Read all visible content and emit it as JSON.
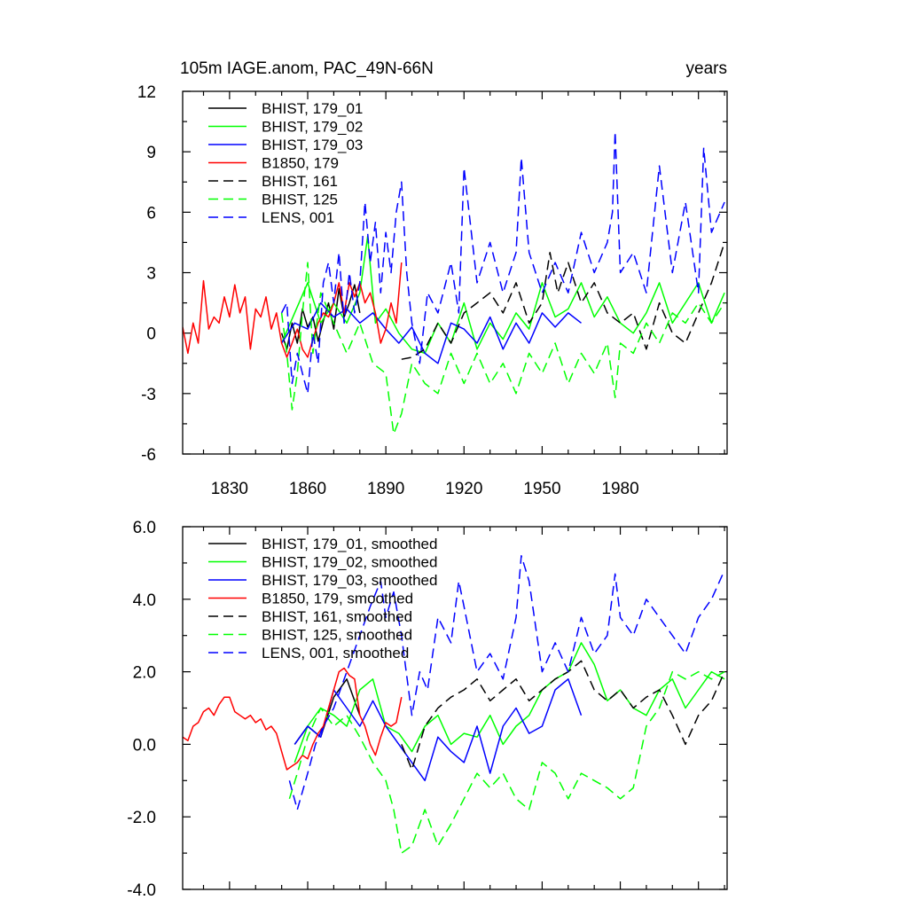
{
  "chart_data": [
    {
      "type": "line",
      "title_left": "105m IAGE.anom, PAC_49N-66N",
      "title_right": "years",
      "xlim": [
        1812,
        2021
      ],
      "ylim": [
        -6,
        12
      ],
      "x_ticks": [
        1830,
        1860,
        1890,
        1920,
        1950,
        1980
      ],
      "x_tick_labels": [
        "1830",
        "1860",
        "1890",
        "1920",
        "1950",
        "1980"
      ],
      "y_ticks": [
        12,
        9,
        6,
        3,
        0,
        -3,
        -6
      ],
      "y_tick_labels": [
        "12",
        "9",
        "6",
        "3",
        "0",
        "-3",
        "-6"
      ],
      "legend_position": "top-left",
      "series": [
        {
          "name": "BHIST, 179_01",
          "color": "#000000",
          "dash": "solid",
          "x": [
            1850,
            1852,
            1854,
            1856,
            1858,
            1860,
            1862,
            1864,
            1866,
            1868,
            1870,
            1872,
            1874,
            1876,
            1878,
            1880
          ],
          "y": [
            0,
            -0.8,
            0.5,
            -0.5,
            1.2,
            0.3,
            0.8,
            -0.4,
            0.6,
            1.5,
            0.2,
            2.2,
            0.8,
            1.5,
            2.4,
            1.0
          ]
        },
        {
          "name": "BHIST, 179_02",
          "color": "#00ff00",
          "dash": "solid",
          "x": [
            1850,
            1855,
            1860,
            1865,
            1870,
            1875,
            1880,
            1883,
            1886,
            1890,
            1895,
            1900,
            1905,
            1910,
            1915,
            1920,
            1925,
            1930,
            1935,
            1940,
            1945,
            1950,
            1955,
            1960,
            1965,
            1970,
            1975,
            1980,
            1985,
            1990,
            1995,
            2000,
            2005,
            2010,
            2015,
            2020
          ],
          "y": [
            -0.5,
            1.0,
            2.5,
            0.5,
            1.5,
            0.5,
            2.0,
            4.8,
            0.5,
            1.2,
            0.0,
            -0.8,
            -1.0,
            0.5,
            -0.5,
            1.5,
            -0.8,
            0.5,
            -0.3,
            1.0,
            0.2,
            2.5,
            0.8,
            1.2,
            2.5,
            0.8,
            1.8,
            0.5,
            0.0,
            1.0,
            2.5,
            0.5,
            1.5,
            2.5,
            0.5,
            2.0
          ]
        },
        {
          "name": "BHIST, 179_03",
          "color": "#0000ff",
          "dash": "solid",
          "x": [
            1850,
            1855,
            1860,
            1865,
            1870,
            1875,
            1880,
            1885,
            1890,
            1895,
            1900,
            1905,
            1910,
            1915,
            1920,
            1925,
            1930,
            1935,
            1940,
            1945,
            1950,
            1955,
            1960,
            1965
          ],
          "y": [
            -0.5,
            0.5,
            0.2,
            1.5,
            0.8,
            1.2,
            0.5,
            1.0,
            0.2,
            -0.5,
            0.3,
            -1.0,
            -1.5,
            0.5,
            0.2,
            -0.5,
            0.8,
            -0.8,
            0.5,
            -0.5,
            1.0,
            0.3,
            1.0,
            0.5
          ]
        },
        {
          "name": "B1850, 179",
          "color": "#ff0000",
          "dash": "solid",
          "x": [
            1812,
            1814,
            1816,
            1818,
            1820,
            1822,
            1824,
            1826,
            1828,
            1830,
            1832,
            1834,
            1836,
            1838,
            1840,
            1842,
            1844,
            1846,
            1848,
            1850,
            1852,
            1854,
            1856,
            1858,
            1860,
            1862,
            1864,
            1866,
            1868,
            1870,
            1872,
            1874,
            1876,
            1878,
            1880,
            1882,
            1884,
            1886,
            1888,
            1890,
            1892,
            1894,
            1896
          ],
          "y": [
            0.3,
            -1.0,
            0.5,
            -0.5,
            2.6,
            0.2,
            0.8,
            0.5,
            1.8,
            0.8,
            2.4,
            1.0,
            1.8,
            -0.8,
            1.2,
            0.8,
            1.8,
            0.2,
            1.0,
            -0.5,
            -1.2,
            -0.5,
            0.2,
            -0.8,
            -1.2,
            -0.3,
            0.5,
            1.0,
            0.8,
            1.5,
            2.5,
            1.0,
            2.5,
            1.8,
            2.5,
            1.5,
            2.0,
            1.0,
            -0.5,
            0.2,
            1.5,
            0.5,
            3.5
          ]
        },
        {
          "name": "BHIST, 161",
          "color": "#000000",
          "dash": "dashed",
          "x": [
            1896,
            1900,
            1905,
            1910,
            1915,
            1920,
            1925,
            1930,
            1935,
            1940,
            1945,
            1950,
            1953,
            1956,
            1960,
            1965,
            1970,
            1975,
            1980,
            1985,
            1990,
            1995,
            2000,
            2005,
            2010,
            2015,
            2020
          ],
          "y": [
            -1.3,
            -1.2,
            -0.8,
            0.5,
            -0.5,
            1.0,
            1.5,
            2.0,
            1.0,
            2.5,
            0.5,
            1.5,
            4.0,
            2.0,
            3.5,
            1.5,
            2.5,
            1.0,
            0.5,
            1.0,
            -0.8,
            1.5,
            0.0,
            -0.5,
            1.0,
            2.5,
            4.5
          ]
        },
        {
          "name": "BHIST, 125",
          "color": "#00ff00",
          "dash": "dashed",
          "x": [
            1850,
            1852,
            1854,
            1856,
            1858,
            1860,
            1862,
            1865,
            1870,
            1875,
            1880,
            1885,
            1890,
            1893,
            1896,
            1900,
            1905,
            1910,
            1915,
            1920,
            1925,
            1930,
            1935,
            1940,
            1945,
            1950,
            1955,
            1960,
            1965,
            1970,
            1975,
            1978,
            1980,
            1985,
            1990,
            1995,
            2000,
            2005,
            2010,
            2015,
            2020
          ],
          "y": [
            1.0,
            -1.0,
            -3.8,
            -2.0,
            1.0,
            3.5,
            -1.0,
            2.0,
            0.5,
            -1.0,
            0.5,
            -1.5,
            -2.0,
            -5.0,
            -4.0,
            -1.5,
            -2.5,
            -3.0,
            -1.0,
            -2.5,
            -1.0,
            -2.5,
            -1.5,
            -3.0,
            -1.0,
            -2.0,
            -0.5,
            -2.5,
            -1.0,
            -2.0,
            -0.5,
            -3.2,
            -0.5,
            -1.0,
            0.5,
            -0.5,
            1.0,
            0.5,
            1.5,
            0.5,
            1.5
          ]
        },
        {
          "name": "LENS, 001",
          "color": "#0000ff",
          "dash": "dashed",
          "x": [
            1850,
            1852,
            1854,
            1856,
            1858,
            1860,
            1862,
            1864,
            1866,
            1868,
            1870,
            1872,
            1874,
            1876,
            1878,
            1880,
            1882,
            1884,
            1886,
            1888,
            1890,
            1892,
            1894,
            1896,
            1898,
            1900,
            1903,
            1906,
            1910,
            1915,
            1918,
            1920,
            1925,
            1930,
            1935,
            1940,
            1942,
            1945,
            1950,
            1955,
            1960,
            1965,
            1970,
            1975,
            1977,
            1978,
            1980,
            1985,
            1990,
            1995,
            2000,
            2005,
            2010,
            2012,
            2015,
            2020
          ],
          "y": [
            1.0,
            1.5,
            -2.5,
            -1.0,
            -2.0,
            -3.0,
            0.0,
            -1.5,
            2.5,
            3.5,
            1.5,
            4.0,
            0.5,
            3.0,
            1.0,
            2.5,
            6.5,
            3.5,
            5.5,
            2.0,
            5.0,
            3.0,
            6.0,
            7.5,
            3.0,
            0.5,
            -1.5,
            2.0,
            1.0,
            3.5,
            1.0,
            8.2,
            2.5,
            4.5,
            2.0,
            4.0,
            8.7,
            4.0,
            2.0,
            3.5,
            2.0,
            5.0,
            3.0,
            4.5,
            6.0,
            10.0,
            3.0,
            4.0,
            2.0,
            8.3,
            3.0,
            6.5,
            2.0,
            9.2,
            5.0,
            6.5
          ]
        }
      ]
    },
    {
      "type": "line",
      "xlim": [
        1812,
        2021
      ],
      "ylim": [
        -4,
        6
      ],
      "x_ticks": [
        1830,
        1860,
        1890,
        1920,
        1950,
        1980
      ],
      "y_ticks": [
        6,
        4,
        2,
        0,
        -2,
        -4
      ],
      "y_tick_labels": [
        "6.0",
        "4.0",
        "2.0",
        "0.0",
        "-2.0",
        "-4.0"
      ],
      "legend_position": "top-left",
      "series": [
        {
          "name": "BHIST, 179_01, smoothed",
          "color": "#000000",
          "dash": "solid",
          "x": [
            1855,
            1860,
            1865,
            1870,
            1875,
            1880
          ],
          "y": [
            0.0,
            0.5,
            0.2,
            1.3,
            1.8,
            0.8
          ]
        },
        {
          "name": "BHIST, 179_02, smoothed",
          "color": "#00ff00",
          "dash": "solid",
          "x": [
            1855,
            1860,
            1865,
            1870,
            1875,
            1880,
            1885,
            1890,
            1895,
            1900,
            1905,
            1910,
            1915,
            1920,
            1925,
            1930,
            1935,
            1940,
            1945,
            1950,
            1955,
            1960,
            1965,
            1970,
            1975,
            1980,
            1985,
            1990,
            1995,
            2000,
            2005,
            2010,
            2015,
            2020
          ],
          "y": [
            -0.5,
            0.5,
            1.0,
            0.8,
            0.5,
            1.5,
            1.8,
            0.5,
            0.3,
            -0.2,
            0.5,
            0.8,
            0.0,
            0.3,
            0.2,
            0.8,
            0.0,
            0.5,
            0.8,
            1.5,
            1.8,
            2.0,
            2.8,
            2.2,
            1.2,
            1.5,
            1.0,
            0.8,
            1.5,
            1.8,
            1.0,
            1.5,
            2.0,
            1.8
          ]
        },
        {
          "name": "BHIST, 179_03, smoothed",
          "color": "#0000ff",
          "dash": "solid",
          "x": [
            1855,
            1860,
            1865,
            1870,
            1875,
            1880,
            1885,
            1890,
            1895,
            1900,
            1905,
            1910,
            1915,
            1920,
            1925,
            1930,
            1935,
            1940,
            1945,
            1950,
            1955,
            1960,
            1965
          ],
          "y": [
            0.0,
            0.5,
            0.2,
            1.5,
            1.0,
            0.5,
            1.2,
            0.5,
            0.0,
            -0.5,
            -1.0,
            0.2,
            -0.2,
            -0.5,
            0.5,
            -0.8,
            0.5,
            1.0,
            0.3,
            0.5,
            1.5,
            1.8,
            0.8
          ]
        },
        {
          "name": "B1850, 179, smoothed",
          "color": "#ff0000",
          "dash": "solid",
          "x": [
            1812,
            1814,
            1816,
            1818,
            1820,
            1822,
            1824,
            1826,
            1828,
            1830,
            1832,
            1834,
            1836,
            1838,
            1840,
            1842,
            1844,
            1846,
            1848,
            1850,
            1852,
            1854,
            1856,
            1858,
            1860,
            1862,
            1864,
            1866,
            1868,
            1870,
            1872,
            1874,
            1876,
            1878,
            1880,
            1882,
            1884,
            1886,
            1888,
            1890,
            1892,
            1894,
            1896
          ],
          "y": [
            0.2,
            0.1,
            0.5,
            0.6,
            0.9,
            1.0,
            0.8,
            1.1,
            1.3,
            1.3,
            0.9,
            0.8,
            0.7,
            0.8,
            0.6,
            0.7,
            0.4,
            0.5,
            0.3,
            -0.2,
            -0.7,
            -0.6,
            -0.5,
            -0.3,
            -0.4,
            0.0,
            0.3,
            0.5,
            1.0,
            1.5,
            2.0,
            2.1,
            1.9,
            1.8,
            0.8,
            0.5,
            0.0,
            -0.3,
            0.2,
            0.6,
            0.5,
            0.6,
            1.3
          ]
        },
        {
          "name": "BHIST, 161, smoothed",
          "color": "#000000",
          "dash": "dashed",
          "x": [
            1896,
            1900,
            1905,
            1910,
            1915,
            1920,
            1925,
            1930,
            1935,
            1940,
            1945,
            1950,
            1955,
            1960,
            1965,
            1970,
            1975,
            1980,
            1985,
            1990,
            1995,
            2000,
            2005,
            2010,
            2015,
            2020
          ],
          "y": [
            0.0,
            -0.7,
            0.5,
            1.0,
            1.3,
            1.5,
            1.8,
            1.2,
            1.5,
            1.8,
            1.2,
            1.5,
            1.8,
            2.0,
            2.3,
            1.5,
            1.2,
            1.5,
            1.0,
            1.3,
            1.5,
            0.8,
            0.0,
            0.8,
            1.2,
            2.0
          ]
        },
        {
          "name": "BHIST, 125, smoothed",
          "color": "#00ff00",
          "dash": "dashed",
          "x": [
            1853,
            1856,
            1860,
            1865,
            1870,
            1875,
            1880,
            1885,
            1890,
            1893,
            1896,
            1900,
            1905,
            1910,
            1915,
            1920,
            1925,
            1930,
            1935,
            1940,
            1945,
            1950,
            1955,
            1960,
            1965,
            1970,
            1975,
            1980,
            1985,
            1990,
            1995,
            2000,
            2005,
            2010,
            2015,
            2020
          ],
          "y": [
            -1.5,
            -0.8,
            0.2,
            1.0,
            0.5,
            0.8,
            0.2,
            -0.5,
            -1.0,
            -1.8,
            -3.0,
            -2.8,
            -1.8,
            -2.8,
            -2.2,
            -1.5,
            -0.8,
            -1.2,
            -0.8,
            -1.5,
            -1.8,
            -0.5,
            -0.8,
            -1.5,
            -0.8,
            -1.0,
            -1.2,
            -1.5,
            -1.2,
            0.5,
            1.0,
            2.0,
            1.8,
            2.0,
            1.8,
            2.0
          ]
        },
        {
          "name": "LENS, 001, smoothed",
          "color": "#0000ff",
          "dash": "dashed",
          "x": [
            1853,
            1856,
            1860,
            1863,
            1866,
            1870,
            1875,
            1880,
            1884,
            1888,
            1890,
            1893,
            1896,
            1900,
            1903,
            1906,
            1910,
            1915,
            1918,
            1920,
            1925,
            1930,
            1935,
            1940,
            1942,
            1945,
            1950,
            1955,
            1960,
            1965,
            1970,
            1975,
            1978,
            1980,
            1985,
            1990,
            1995,
            2000,
            2005,
            2010,
            2015,
            2020
          ],
          "y": [
            -1.0,
            -1.8,
            -0.8,
            0.0,
            0.5,
            1.0,
            2.0,
            3.0,
            3.8,
            4.5,
            3.5,
            4.2,
            3.0,
            0.8,
            2.0,
            1.5,
            3.5,
            2.8,
            4.5,
            3.8,
            2.0,
            2.5,
            1.8,
            3.5,
            5.2,
            4.5,
            2.0,
            2.8,
            2.0,
            3.5,
            2.5,
            3.0,
            4.7,
            3.5,
            3.0,
            4.0,
            3.5,
            3.0,
            2.5,
            3.5,
            4.0,
            4.8
          ]
        }
      ]
    }
  ]
}
